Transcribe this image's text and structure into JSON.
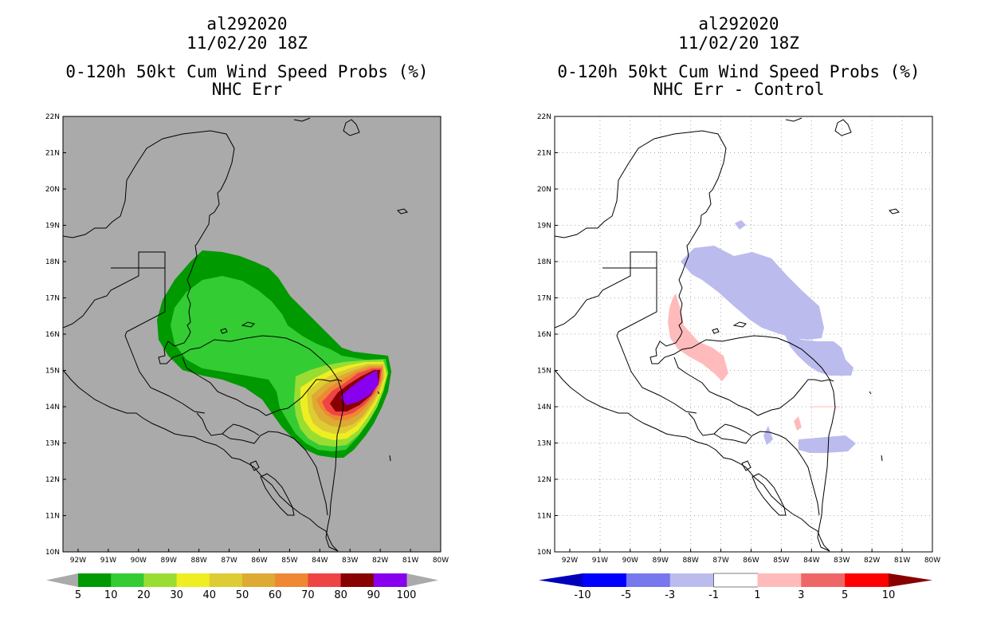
{
  "panels": [
    {
      "id": "left",
      "title_lines": [
        "al292020",
        "11/02/20 18Z",
        "0-120h 50kt Cum Wind Speed Probs (%)",
        "NHC Err"
      ],
      "background": "#aaaaaa",
      "grid": false
    },
    {
      "id": "right",
      "title_lines": [
        "al292020",
        "11/02/20 18Z",
        "0-120h 50kt Cum Wind Speed Probs (%)",
        "NHC Err - Control"
      ],
      "background": "#ffffff",
      "grid": true
    }
  ],
  "chart_data": [
    {
      "type": "heatmap",
      "title": "0-120h 50kt Cum Wind Speed Probs (%) NHC Err",
      "x_ticks": [
        "92W",
        "91W",
        "90W",
        "89W",
        "88W",
        "87W",
        "86W",
        "85W",
        "84W",
        "83W",
        "82W",
        "81W",
        "80W"
      ],
      "y_ticks": [
        "10N",
        "11N",
        "12N",
        "13N",
        "14N",
        "15N",
        "16N",
        "17N",
        "18N",
        "19N",
        "20N",
        "21N",
        "22N"
      ],
      "xlim": [
        -92.5,
        -80
      ],
      "ylim": [
        10,
        22
      ],
      "colorbar": {
        "levels": [
          "5",
          "10",
          "20",
          "30",
          "40",
          "50",
          "60",
          "70",
          "80",
          "90",
          "100"
        ],
        "colors": [
          "#009900",
          "#33cc33",
          "#99dd33",
          "#eeee22",
          "#ddcc33",
          "#ddaa33",
          "#ee8833",
          "#ee4444",
          "#880000",
          "#8800ee"
        ],
        "under_color": "#aaaaaa",
        "over_color": "#aaaaaa"
      },
      "peak_region": {
        "lon": [
          -83.6,
          -82
        ],
        "lat": [
          13.9,
          15.0
        ],
        "value_range": "90-100"
      }
    },
    {
      "type": "heatmap",
      "title": "0-120h 50kt Cum Wind Speed Probs (%) NHC Err - Control",
      "x_ticks": [
        "92W",
        "91W",
        "90W",
        "89W",
        "88W",
        "87W",
        "86W",
        "85W",
        "84W",
        "83W",
        "82W",
        "81W",
        "80W"
      ],
      "y_ticks": [
        "10N",
        "11N",
        "12N",
        "13N",
        "14N",
        "15N",
        "16N",
        "17N",
        "18N",
        "19N",
        "20N",
        "21N",
        "22N"
      ],
      "xlim": [
        -92.5,
        -80
      ],
      "ylim": [
        10,
        22
      ],
      "colorbar": {
        "levels": [
          "-10",
          "-5",
          "-3",
          "-1",
          "1",
          "3",
          "5",
          "10"
        ],
        "colors": [
          "#0000bb",
          "#0000ff",
          "#7777ee",
          "#bbbbee",
          "#ffffff",
          "#ffbbbb",
          "#ee6666",
          "#ff0000",
          "#880000"
        ]
      }
    }
  ]
}
